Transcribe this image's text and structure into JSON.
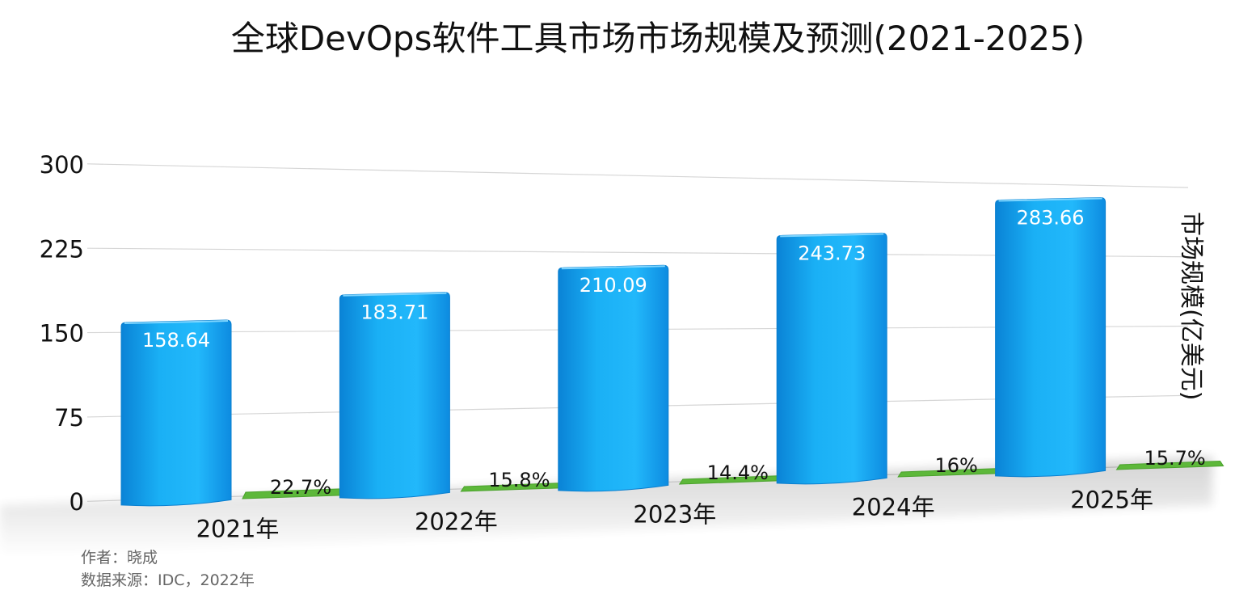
{
  "chart_data": {
    "type": "bar",
    "title": "全球DevOps软件工具市场市场规模及预测(2021-2025)",
    "ylabel": "市场规模(亿美元)",
    "xlabel": "",
    "ylim": [
      0,
      300
    ],
    "yticks": [
      "0",
      "75",
      "150",
      "225",
      "300"
    ],
    "grid": true,
    "categories": [
      "2021年",
      "2022年",
      "2023年",
      "2024年",
      "2025年"
    ],
    "series": [
      {
        "values": [
          158.64,
          183.71,
          210.09,
          243.73,
          283.66
        ],
        "labels": [
          "158.64",
          "183.71",
          "210.09",
          "243.73",
          "283.66"
        ],
        "color": "#1aa8f0"
      },
      {
        "values": [
          22.7,
          15.8,
          14.4,
          16,
          15.7
        ],
        "labels": [
          "22.7%",
          "15.8%",
          "14.4%",
          "16%",
          "15.7%"
        ],
        "color": "#5db83a"
      }
    ]
  },
  "footer": {
    "author": "作者：晓成",
    "source": "数据来源：IDC，2022年"
  }
}
